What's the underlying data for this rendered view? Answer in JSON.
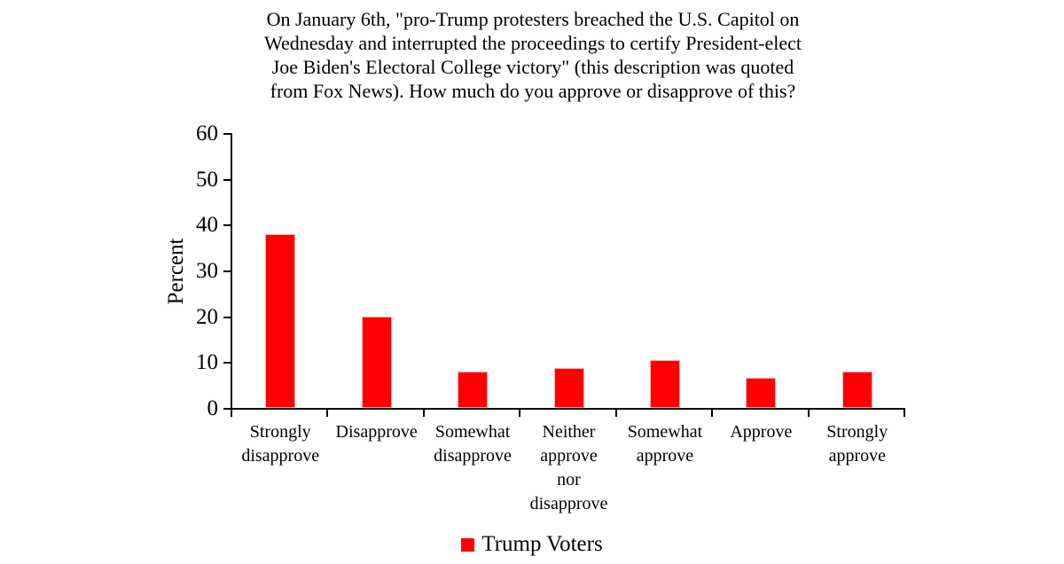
{
  "page": {
    "background": "#FFFFFF"
  },
  "chart_data": {
    "type": "bar",
    "title": "On January 6th, \"pro-Trump protesters breached the U.S. Capitol on Wednesday and interrupted the proceedings to certify President-elect Joe Biden's Electoral College victory\" (this description was quoted from Fox News). How much do you approve or disapprove of this?",
    "title_lines": [
      "On January 6th, \"pro-Trump protesters breached the U.S. Capitol on",
      "Wednesday and interrupted the proceedings to certify President-elect",
      "Joe Biden's Electoral College victory\" (this description was quoted",
      "from Fox News). How much do you approve or disapprove of this?"
    ],
    "xlabel": "",
    "ylabel": "Percent",
    "ylim": [
      0,
      60
    ],
    "yticks": [
      0,
      10,
      20,
      30,
      40,
      50,
      60
    ],
    "grid": false,
    "categories": [
      "Strongly disapprove",
      "Disapprove",
      "Somewhat disapprove",
      "Neither approve nor disapprove",
      "Somewhat approve",
      "Approve",
      "Strongly approve"
    ],
    "series": [
      {
        "name": "Trump Voters",
        "color": "#FF0000",
        "values": [
          38,
          20,
          8,
          8.7,
          10.5,
          6.5,
          8
        ]
      }
    ],
    "legend": {
      "position": "bottom",
      "entries": [
        "Trump Voters"
      ]
    },
    "axis_color": "#000000",
    "text_color": "#000000"
  }
}
